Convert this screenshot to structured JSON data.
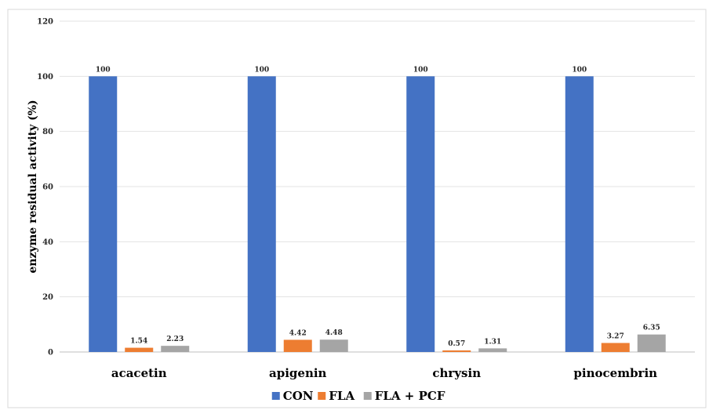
{
  "chart_data": {
    "type": "bar",
    "title": "",
    "xlabel": "",
    "ylabel": "enzyme residual activity (%)",
    "ylim": [
      0,
      120
    ],
    "yticks": [
      0,
      20,
      40,
      60,
      80,
      100,
      120
    ],
    "grid": true,
    "legend_position": "bottom",
    "categories": [
      "acacetin",
      "apigenin",
      "chrysin",
      "pinocembrin"
    ],
    "series": [
      {
        "name": "CON",
        "color": "#4472C4",
        "values": [
          100,
          100,
          100,
          100
        ],
        "labels": [
          "100",
          "100",
          "100",
          "100"
        ]
      },
      {
        "name": "FLA",
        "color": "#ED7D31",
        "values": [
          1.54,
          4.42,
          0.57,
          3.27
        ],
        "labels": [
          "1.54",
          "4.42",
          "0.57",
          "3.27"
        ]
      },
      {
        "name": "FLA + PCF",
        "color": "#A5A5A5",
        "values": [
          2.23,
          4.48,
          1.31,
          6.35
        ],
        "labels": [
          "2.23",
          "4.48",
          "1.31",
          "6.35"
        ]
      }
    ]
  }
}
